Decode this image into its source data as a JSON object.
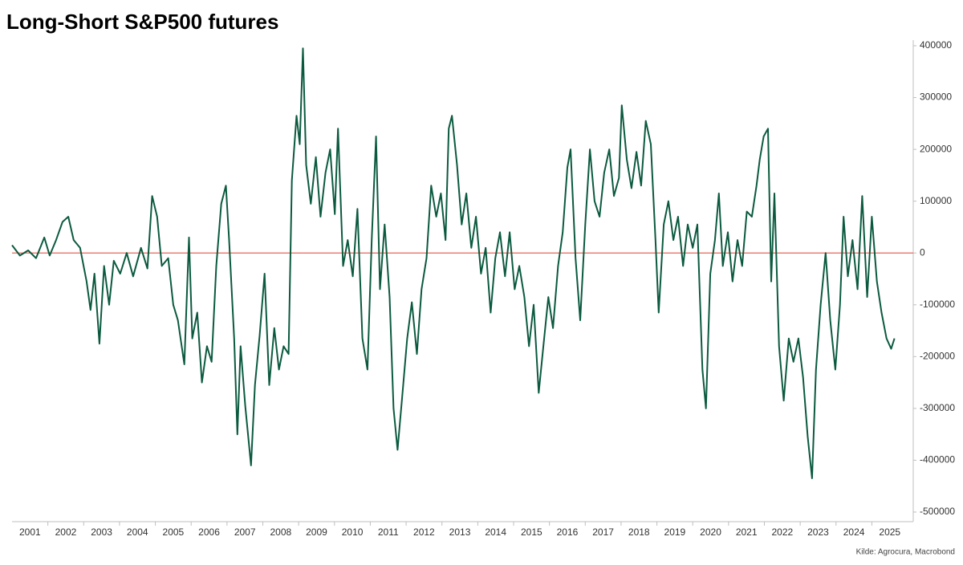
{
  "chart_data": {
    "type": "line",
    "title": "Long-Short S&P500 futures",
    "source": "Kilde: Agrocura, Macrobond",
    "x": [
      2001.0,
      2001.22,
      2001.45,
      2001.67,
      2001.9,
      2002.05,
      2002.23,
      2002.41,
      2002.57,
      2002.72,
      2002.9,
      2003.08,
      2003.19,
      2003.3,
      2003.44,
      2003.57,
      2003.71,
      2003.84,
      2004.02,
      2004.2,
      2004.38,
      2004.6,
      2004.78,
      2004.91,
      2005.05,
      2005.18,
      2005.36,
      2005.5,
      2005.63,
      2005.81,
      2005.94,
      2006.03,
      2006.17,
      2006.3,
      2006.44,
      2006.57,
      2006.7,
      2006.84,
      2006.97,
      2007.06,
      2007.2,
      2007.29,
      2007.38,
      2007.51,
      2007.67,
      2007.78,
      2007.91,
      2008.05,
      2008.18,
      2008.32,
      2008.45,
      2008.58,
      2008.72,
      2008.81,
      2008.94,
      2009.03,
      2009.12,
      2009.21,
      2009.34,
      2009.48,
      2009.61,
      2009.75,
      2009.88,
      2010.01,
      2010.1,
      2010.24,
      2010.37,
      2010.51,
      2010.64,
      2010.78,
      2010.92,
      2011.04,
      2011.16,
      2011.27,
      2011.4,
      2011.54,
      2011.65,
      2011.76,
      2011.9,
      2012.03,
      2012.16,
      2012.3,
      2012.43,
      2012.57,
      2012.7,
      2012.84,
      2012.97,
      2013.1,
      2013.19,
      2013.28,
      2013.42,
      2013.55,
      2013.68,
      2013.82,
      2013.95,
      2014.09,
      2014.22,
      2014.36,
      2014.49,
      2014.62,
      2014.76,
      2014.89,
      2015.03,
      2015.16,
      2015.3,
      2015.43,
      2015.56,
      2015.7,
      2015.83,
      2015.97,
      2016.1,
      2016.24,
      2016.37,
      2016.5,
      2016.59,
      2016.73,
      2016.86,
      2017.0,
      2017.13,
      2017.26,
      2017.4,
      2017.53,
      2017.67,
      2017.8,
      2017.94,
      2018.02,
      2018.16,
      2018.29,
      2018.43,
      2018.56,
      2018.69,
      2018.83,
      2018.96,
      2019.05,
      2019.19,
      2019.32,
      2019.46,
      2019.59,
      2019.73,
      2019.86,
      2020.0,
      2020.13,
      2020.27,
      2020.37,
      2020.49,
      2020.62,
      2020.73,
      2020.84,
      2020.98,
      2021.11,
      2021.25,
      2021.38,
      2021.51,
      2021.65,
      2021.78,
      2021.87,
      2021.98,
      2022.1,
      2022.19,
      2022.28,
      2022.41,
      2022.54,
      2022.68,
      2022.81,
      2022.95,
      2023.08,
      2023.21,
      2023.33,
      2023.44,
      2023.57,
      2023.71,
      2023.84,
      2023.98,
      2024.11,
      2024.21,
      2024.33,
      2024.46,
      2024.6,
      2024.73,
      2024.87,
      2025.0,
      2025.14,
      2025.27,
      2025.41,
      2025.54,
      2025.63
    ],
    "series": [
      {
        "name": "Long-Short S&P500 futures",
        "color": "#0b5a3f",
        "values": [
          15000,
          -5000,
          5000,
          -10000,
          30000,
          -5000,
          25000,
          60000,
          70000,
          25000,
          10000,
          -55000,
          -110000,
          -40000,
          -175000,
          -25000,
          -100000,
          -15000,
          -40000,
          0,
          -45000,
          10000,
          -30000,
          110000,
          70000,
          -25000,
          -10000,
          -100000,
          -130000,
          -215000,
          30000,
          -165000,
          -115000,
          -250000,
          -180000,
          -210000,
          -25000,
          95000,
          130000,
          25000,
          -165000,
          -350000,
          -180000,
          -295000,
          -410000,
          -255000,
          -160000,
          -40000,
          -255000,
          -145000,
          -225000,
          -180000,
          -195000,
          140000,
          265000,
          210000,
          395000,
          170000,
          95000,
          185000,
          70000,
          155000,
          200000,
          75000,
          240000,
          -25000,
          25000,
          -45000,
          85000,
          -165000,
          -225000,
          25000,
          225000,
          -70000,
          55000,
          -85000,
          -300000,
          -380000,
          -270000,
          -165000,
          -95000,
          -195000,
          -70000,
          -10000,
          130000,
          70000,
          115000,
          25000,
          240000,
          265000,
          170000,
          55000,
          115000,
          10000,
          70000,
          -40000,
          10000,
          -115000,
          -10000,
          40000,
          -45000,
          40000,
          -70000,
          -25000,
          -85000,
          -180000,
          -100000,
          -270000,
          -180000,
          -85000,
          -145000,
          -25000,
          40000,
          165000,
          200000,
          -10000,
          -130000,
          55000,
          200000,
          100000,
          70000,
          155000,
          200000,
          110000,
          145000,
          285000,
          180000,
          125000,
          195000,
          130000,
          255000,
          210000,
          25000,
          -115000,
          55000,
          100000,
          25000,
          70000,
          -25000,
          55000,
          10000,
          55000,
          -225000,
          -300000,
          -40000,
          25000,
          115000,
          -25000,
          40000,
          -55000,
          25000,
          -25000,
          80000,
          70000,
          130000,
          180000,
          225000,
          240000,
          -55000,
          115000,
          -180000,
          -285000,
          -165000,
          -210000,
          -165000,
          -240000,
          -355000,
          -435000,
          -225000,
          -100000,
          0,
          -130000,
          -225000,
          -100000,
          70000,
          -45000,
          25000,
          -70000,
          110000,
          -85000,
          70000,
          -55000,
          -115000,
          -165000,
          -185000,
          -165000
        ]
      }
    ],
    "xlim": [
      2001,
      2026.2
    ],
    "xticks": [
      2001,
      2002,
      2003,
      2004,
      2005,
      2006,
      2007,
      2008,
      2009,
      2010,
      2011,
      2012,
      2013,
      2014,
      2015,
      2016,
      2017,
      2018,
      2019,
      2020,
      2021,
      2022,
      2023,
      2024,
      2025
    ],
    "ylim": [
      -500000,
      400000
    ],
    "yticks": [
      -500000,
      -400000,
      -300000,
      -200000,
      -100000,
      0,
      100000,
      200000,
      300000,
      400000
    ],
    "zero_line_color": "#e8645a",
    "grid": false,
    "y_axis_side": "right"
  }
}
